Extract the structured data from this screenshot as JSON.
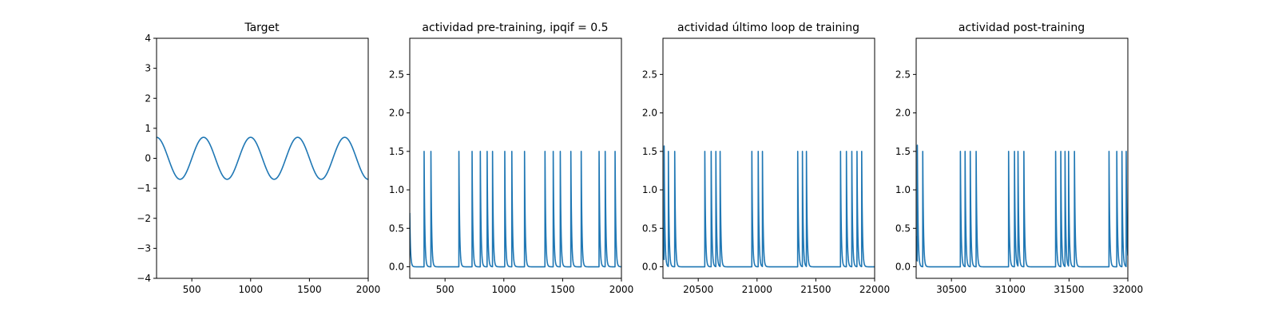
{
  "figure": {
    "background": "#ffffff",
    "line_color": "#1f77b4"
  },
  "chart_data": [
    {
      "type": "line",
      "title": "Target",
      "xlim": [
        200,
        2000
      ],
      "ylim": [
        -4,
        4
      ],
      "xticks": [
        500,
        1000,
        1500,
        2000
      ],
      "yticks": [
        -4,
        -3,
        -2,
        -1,
        0,
        1,
        2,
        3,
        4
      ],
      "series": [
        {
          "kind": "sine",
          "amplitude": 0.7,
          "period": 400,
          "peak_at": 600,
          "x_start": 200,
          "x_end": 2000,
          "step": 5
        }
      ]
    },
    {
      "type": "line",
      "title": "actividad pre-training, ipqif = 0.5",
      "xlim": [
        200,
        2000
      ],
      "ylim": [
        -0.15,
        2.97
      ],
      "xticks": [
        500,
        1000,
        1500,
        2000
      ],
      "yticks": [
        0.0,
        0.5,
        1.0,
        1.5,
        2.0,
        2.5
      ],
      "series": [
        {
          "kind": "spikes",
          "baseline": 0.0,
          "initial_value": 0.7,
          "decay": 6,
          "step": 2,
          "spikes": [
            [
              322,
              1.5
            ],
            [
              380,
              1.5
            ],
            [
              617,
              1.5
            ],
            [
              730,
              1.5
            ],
            [
              800,
              1.5
            ],
            [
              857,
              1.5
            ],
            [
              903,
              1.5
            ],
            [
              1007,
              1.5
            ],
            [
              1068,
              1.5
            ],
            [
              1176,
              1.5
            ],
            [
              1350,
              1.5
            ],
            [
              1420,
              1.5
            ],
            [
              1480,
              1.5
            ],
            [
              1570,
              1.5
            ],
            [
              1658,
              1.5
            ],
            [
              1810,
              1.5
            ],
            [
              1862,
              1.5
            ],
            [
              1945,
              1.5
            ]
          ]
        }
      ]
    },
    {
      "type": "line",
      "title": "actividad último loop de training",
      "xlim": [
        20200,
        22000
      ],
      "ylim": [
        -0.15,
        2.97
      ],
      "xticks": [
        20500,
        21000,
        21500,
        22000
      ],
      "yticks": [
        0.0,
        0.5,
        1.0,
        1.5,
        2.0,
        2.5
      ],
      "series": [
        {
          "kind": "spikes",
          "baseline": 0.0,
          "initial_value": 0.5,
          "decay": 6,
          "step": 2,
          "spikes": [
            [
              20210,
              1.57
            ],
            [
              20245,
              1.5
            ],
            [
              20300,
              1.5
            ],
            [
              20555,
              1.5
            ],
            [
              20610,
              1.5
            ],
            [
              20650,
              1.5
            ],
            [
              20685,
              1.5
            ],
            [
              20955,
              1.5
            ],
            [
              21010,
              1.5
            ],
            [
              21045,
              1.5
            ],
            [
              21345,
              1.5
            ],
            [
              21385,
              1.5
            ],
            [
              21420,
              1.5
            ],
            [
              21710,
              1.5
            ],
            [
              21760,
              1.5
            ],
            [
              21805,
              1.5
            ],
            [
              21850,
              1.5
            ],
            [
              21890,
              1.5
            ]
          ]
        }
      ]
    },
    {
      "type": "line",
      "title": "actividad post-training",
      "xlim": [
        30200,
        32000
      ],
      "ylim": [
        -0.15,
        2.97
      ],
      "xticks": [
        30500,
        31000,
        31500,
        32000
      ],
      "yticks": [
        0.0,
        0.5,
        1.0,
        1.5,
        2.0,
        2.5
      ],
      "series": [
        {
          "kind": "spikes",
          "baseline": 0.0,
          "initial_value": 0.4,
          "decay": 6,
          "step": 2,
          "spikes": [
            [
              30210,
              1.58
            ],
            [
              30255,
              1.5
            ],
            [
              30575,
              1.5
            ],
            [
              30615,
              1.5
            ],
            [
              30660,
              1.5
            ],
            [
              30710,
              1.5
            ],
            [
              30985,
              1.5
            ],
            [
              31035,
              1.5
            ],
            [
              31065,
              1.5
            ],
            [
              31115,
              1.5
            ],
            [
              31385,
              1.5
            ],
            [
              31430,
              1.5
            ],
            [
              31465,
              1.5
            ],
            [
              31495,
              1.5
            ],
            [
              31545,
              1.5
            ],
            [
              31840,
              1.5
            ],
            [
              31905,
              1.5
            ],
            [
              31950,
              1.5
            ],
            [
              31985,
              1.5
            ]
          ]
        }
      ]
    }
  ]
}
